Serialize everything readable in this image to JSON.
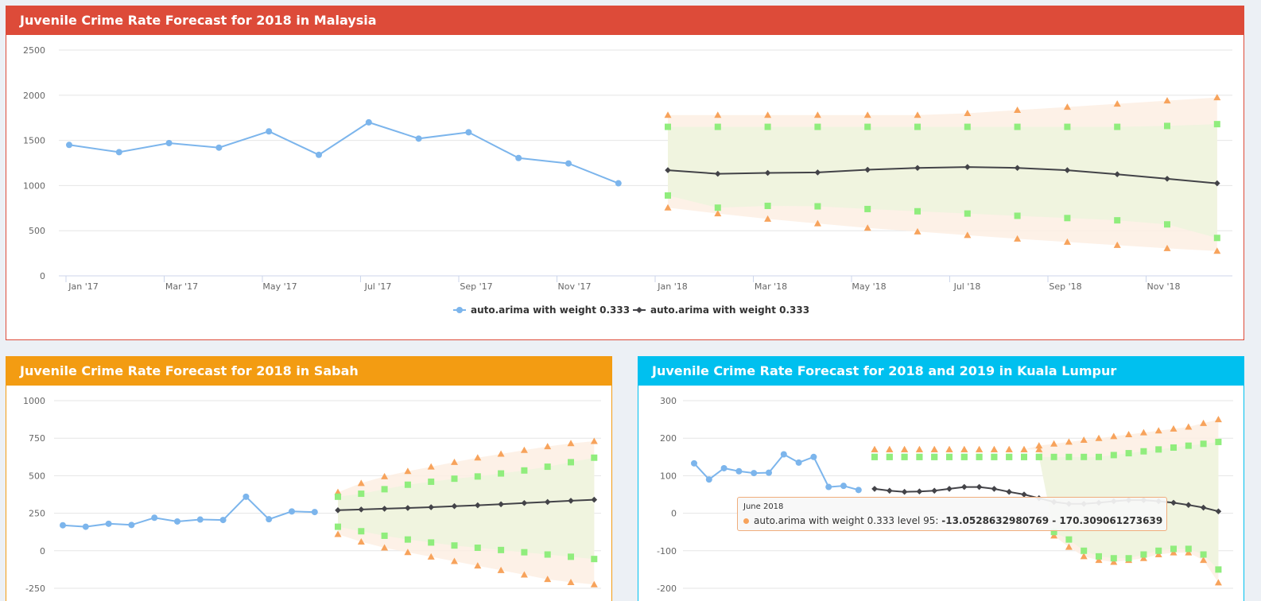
{
  "panels": {
    "malaysia": {
      "title": "Juvenile Crime Rate Forecast for 2018 in Malaysia",
      "color": "#dd4b39"
    },
    "sabah": {
      "title": "Juvenile Crime Rate Forecast for 2018 in Sabah",
      "color": "#f39c12"
    },
    "kl": {
      "title": "Juvenile Crime Rate Forecast for 2018 and 2019 in Kuala Lumpur",
      "color": "#00c0ef"
    }
  },
  "legend": {
    "historical": "auto.arima with weight 0.333",
    "forecast": "auto.arima with weight 0.333"
  },
  "tooltip": {
    "title": "June 2018",
    "label": "auto.arima with weight 0.333 level 95: ",
    "value": "-13.0528632980769 - 170.309061273639"
  },
  "colors": {
    "historical": "#7cb5ec",
    "forecast": "#434348",
    "band80": "#90ed7d",
    "band95": "#f7a35c"
  },
  "chart_data": [
    {
      "type": "line",
      "title": "Juvenile Crime Rate Forecast for 2018 in Malaysia",
      "ylim": [
        0,
        2500
      ],
      "yticks": [
        "0",
        "500",
        "1000",
        "1500",
        "2000",
        "2500"
      ],
      "xticks": [
        "Jan '17",
        "Mar '17",
        "May '17",
        "Jul '17",
        "Sep '17",
        "Nov '17",
        "Jan '18",
        "Mar '18",
        "May '18",
        "Jul '18",
        "Sep '18",
        "Nov '18"
      ],
      "historical": {
        "name": "auto.arima with weight 0.333",
        "x": [
          "Jan 2017",
          "Feb 2017",
          "Mar 2017",
          "Apr 2017",
          "May 2017",
          "Jun 2017",
          "Jul 2017",
          "Aug 2017",
          "Sep 2017",
          "Oct 2017",
          "Nov 2017",
          "Dec 2017"
        ],
        "values": [
          1450,
          1370,
          1470,
          1420,
          1600,
          1340,
          1700,
          1520,
          1590,
          1305,
          1245,
          1025
        ]
      },
      "forecast": {
        "name": "auto.arima with weight 0.333",
        "x": [
          "Jan 2018",
          "Feb 2018",
          "Mar 2018",
          "Apr 2018",
          "May 2018",
          "Jun 2018",
          "Jul 2018",
          "Aug 2018",
          "Sep 2018",
          "Oct 2018",
          "Nov 2018",
          "Dec 2018"
        ],
        "values": [
          1170,
          1130,
          1140,
          1145,
          1175,
          1195,
          1205,
          1195,
          1170,
          1125,
          1075,
          1025
        ],
        "lo80": [
          890,
          755,
          775,
          770,
          740,
          715,
          690,
          665,
          640,
          615,
          570,
          420
        ],
        "hi80": [
          1650,
          1650,
          1650,
          1650,
          1650,
          1650,
          1650,
          1650,
          1650,
          1650,
          1660,
          1680
        ],
        "lo95": [
          755,
          690,
          630,
          580,
          530,
          490,
          450,
          410,
          375,
          340,
          305,
          275
        ],
        "hi95": [
          1780,
          1780,
          1780,
          1780,
          1780,
          1780,
          1800,
          1835,
          1870,
          1905,
          1940,
          1975
        ]
      }
    },
    {
      "type": "line",
      "title": "Juvenile Crime Rate Forecast for 2018 in Sabah",
      "ylim": [
        -250,
        1000
      ],
      "yticks": [
        "-250",
        "0",
        "250",
        "500",
        "750",
        "1000"
      ],
      "historical": {
        "values": [
          170,
          160,
          180,
          172,
          220,
          195,
          208,
          205,
          360,
          210,
          262,
          258
        ]
      },
      "forecast": {
        "values": [
          270,
          275,
          280,
          285,
          290,
          297,
          303,
          310,
          318,
          325,
          333,
          340
        ],
        "lo80": [
          160,
          130,
          100,
          75,
          55,
          35,
          20,
          5,
          -10,
          -25,
          -40,
          -55
        ],
        "hi80": [
          360,
          380,
          410,
          440,
          460,
          480,
          495,
          515,
          535,
          560,
          590,
          620
        ],
        "lo95": [
          110,
          60,
          20,
          -10,
          -40,
          -70,
          -100,
          -130,
          -160,
          -190,
          -210,
          -225
        ],
        "hi95": [
          390,
          450,
          495,
          530,
          560,
          590,
          620,
          645,
          670,
          695,
          715,
          730
        ]
      }
    },
    {
      "type": "line",
      "title": "Juvenile Crime Rate Forecast for 2018 and 2019 in Kuala Lumpur",
      "ylim": [
        -200,
        300
      ],
      "yticks": [
        "-200",
        "-100",
        "0",
        "100",
        "200",
        "300"
      ],
      "historical": {
        "values": [
          133,
          90,
          120,
          112,
          107,
          108,
          157,
          135,
          150,
          70,
          73,
          62
        ]
      },
      "forecast": {
        "values": [
          65,
          60,
          57,
          58,
          60,
          65,
          70,
          70,
          65,
          57,
          50,
          40,
          30,
          25,
          25,
          28,
          32,
          35,
          35,
          32,
          28,
          22,
          15,
          5
        ],
        "lo80": [
          150,
          150,
          150,
          150,
          150,
          150,
          150,
          150,
          150,
          150,
          150,
          150,
          -50,
          -70,
          -100,
          -115,
          -120,
          -120,
          -110,
          -100,
          -95,
          -95,
          -110,
          -150
        ],
        "hi80": [
          150,
          150,
          150,
          150,
          150,
          150,
          150,
          150,
          150,
          150,
          150,
          150,
          150,
          150,
          150,
          150,
          155,
          160,
          165,
          170,
          175,
          180,
          185,
          190
        ],
        "lo95": [
          170,
          170,
          170,
          170,
          170,
          170,
          170,
          170,
          170,
          170,
          170,
          170,
          -60,
          -90,
          -115,
          -125,
          -130,
          -125,
          -120,
          -110,
          -105,
          -105,
          -125,
          -185
        ],
        "hi95": [
          170,
          170,
          170,
          170,
          170,
          170,
          170,
          170,
          170,
          170,
          170,
          180,
          185,
          190,
          195,
          200,
          205,
          210,
          215,
          220,
          225,
          230,
          240,
          250
        ]
      }
    }
  ]
}
